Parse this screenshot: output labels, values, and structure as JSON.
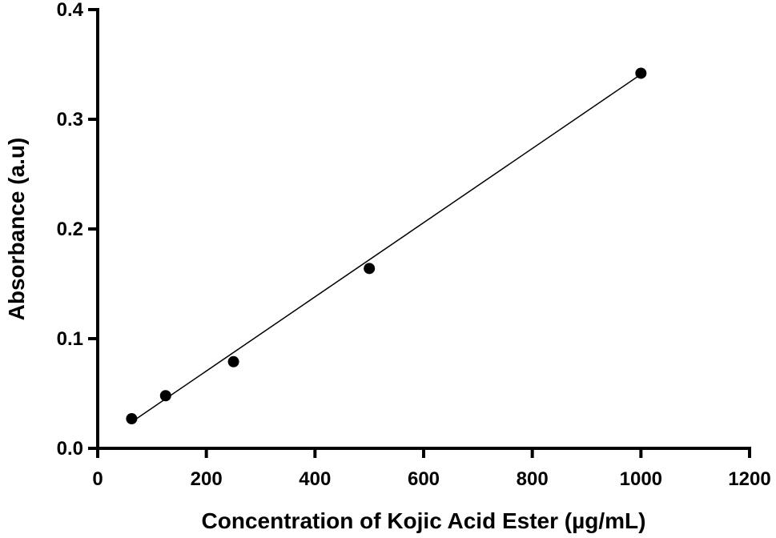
{
  "chart_data": {
    "type": "scatter",
    "title": "",
    "xlabel": "Concentration of Kojic Acid Ester (µg/mL)",
    "ylabel": "Absorbance (a.u)",
    "xlim": [
      0,
      1200
    ],
    "ylim": [
      0,
      0.4
    ],
    "x_ticks": [
      "0",
      "200",
      "400",
      "600",
      "800",
      "1000",
      "1200"
    ],
    "y_ticks": [
      "0.0",
      "0.1",
      "0.2",
      "0.3",
      "0.4"
    ],
    "grid": false,
    "series": [
      {
        "x": [
          62.5,
          125,
          250,
          500,
          1000
        ],
        "y": [
          0.027,
          0.048,
          0.079,
          0.164,
          0.342
        ],
        "marker": "filled-circle",
        "color": "#000000"
      }
    ],
    "fit_line": {
      "x": [
        62.5,
        1000
      ],
      "y": [
        0.024,
        0.341
      ],
      "color": "#000000"
    }
  }
}
